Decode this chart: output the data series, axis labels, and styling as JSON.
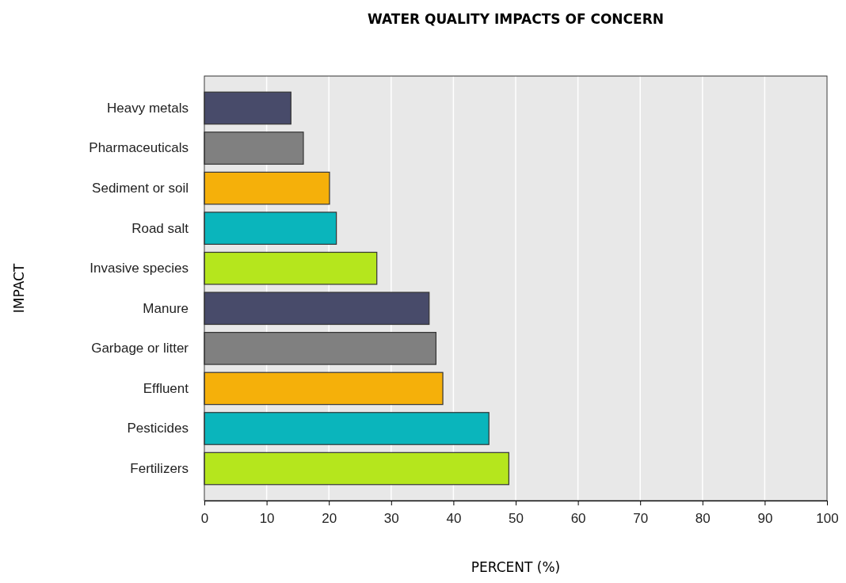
{
  "chart_data": {
    "type": "bar",
    "orientation": "horizontal",
    "title": "WATER QUALITY IMPACTS OF CONCERN",
    "xlabel": "PERCENT (%)",
    "ylabel": "IMPACT",
    "categories": [
      "Heavy metals",
      "Pharmaceuticals",
      "Sediment or soil",
      "Road salt",
      "Invasive species",
      "Manure",
      "Garbage or litter",
      "Effluent",
      "Pesticides",
      "Fertilizers"
    ],
    "values": [
      13.9,
      15.9,
      20.1,
      21.2,
      27.7,
      36.1,
      37.2,
      38.3,
      45.7,
      48.9
    ],
    "colors": [
      "#484b6a",
      "#808080",
      "#f5b00a",
      "#0ab5bc",
      "#b5e61d",
      "#484b6a",
      "#808080",
      "#f5b00a",
      "#0ab5bc",
      "#b5e61d"
    ],
    "xlim": [
      0,
      100
    ],
    "xticks": [
      0,
      10,
      20,
      30,
      40,
      50,
      60,
      70,
      80,
      90,
      100
    ],
    "grid": "x"
  }
}
